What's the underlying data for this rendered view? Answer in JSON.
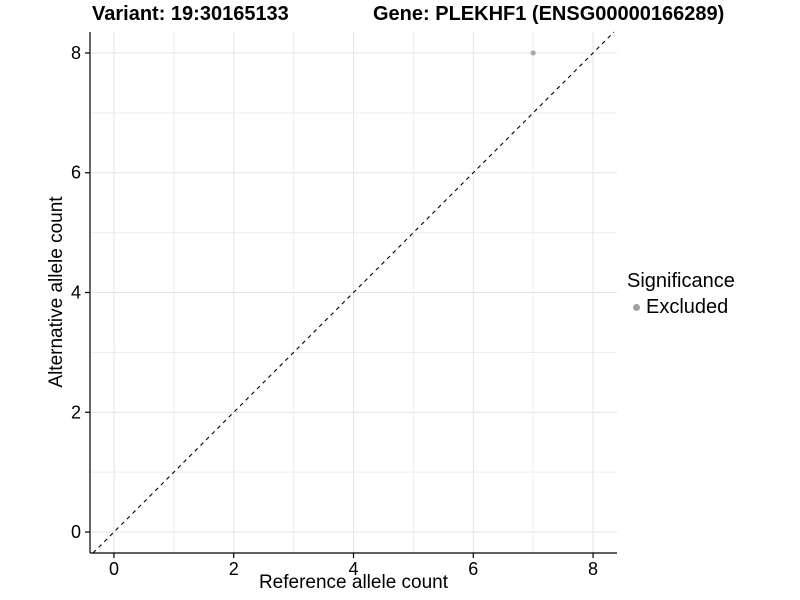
{
  "chart_data": {
    "type": "scatter",
    "titles": {
      "variant": "Variant: 19:30165133",
      "gene": "Gene: PLEKHF1 (ENSG00000166289)"
    },
    "xlabel": "Reference allele count",
    "ylabel": "Alternative allele count",
    "xlim": [
      -0.4,
      8.4
    ],
    "ylim": [
      -0.35,
      8.35
    ],
    "xticks": [
      0,
      2,
      4,
      6,
      8
    ],
    "yticks": [
      0,
      2,
      4,
      6,
      8
    ],
    "xminor": [
      1,
      3,
      5,
      7
    ],
    "yminor": [
      1,
      3,
      5,
      7
    ],
    "grid": true,
    "identity_line": {
      "style": "dashed",
      "slope": 1,
      "intercept": 0,
      "color": "#000000"
    },
    "series": [
      {
        "name": "Excluded",
        "color": "#a8a8a8",
        "points": [
          {
            "x": 7,
            "y": 8
          }
        ]
      }
    ],
    "legend": {
      "position": "right",
      "title": "Significance",
      "items": [
        {
          "label": "Excluded",
          "color": "#a0a0a0",
          "marker": "circle-icon"
        }
      ]
    },
    "colors": {
      "grid_major": "#e4e4e4",
      "grid_minor": "#ededed",
      "axis": "#000000",
      "text": "#000000"
    }
  }
}
